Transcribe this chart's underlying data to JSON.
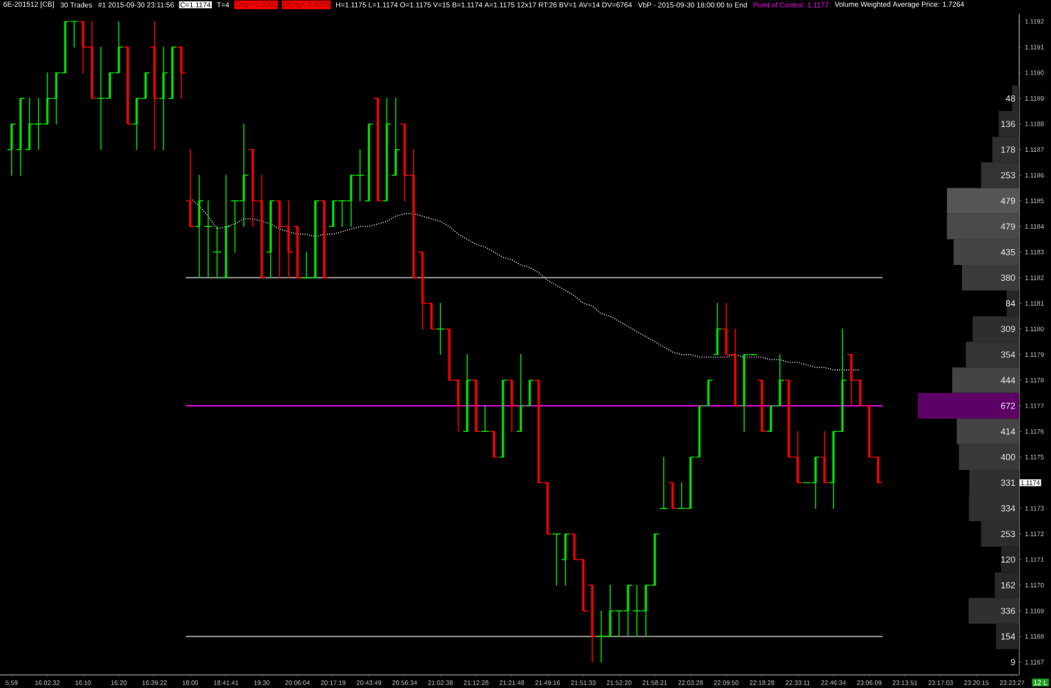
{
  "chart_data": [
    {
      "type": "candlestick",
      "title": "6E-201512 [CB]",
      "annotations": [
        "30 Trades",
        "#1 2015-09-30 23:11:56",
        "C=1.1174",
        "T=4",
        "Chg=-0.0001",
        "DChg=-0.0005",
        "H=1.1175 L=1.1174 O=1.1175 V=15 B=1.1174 A=1.1175 12x17 RT:26 BV=1 AV=14 DV=6764",
        "VbP - 2015-09-30 18:00:00 to End",
        "Point of Control: 1.1177",
        "Volume Weighted Average Price: 1.7264",
        "1.1174",
        "12 L"
      ],
      "categories": [
        "5:59",
        null,
        null,
        null,
        "16:02:32",
        null,
        null,
        null,
        "16:10",
        null,
        null,
        null,
        "16:20",
        null,
        null,
        null,
        "16:39:22",
        null,
        null,
        null,
        "18:00",
        null,
        null,
        null,
        "18:41:41",
        null,
        null,
        null,
        "19:30",
        null,
        null,
        null,
        "20:06:04",
        null,
        null,
        null,
        "20:17:19",
        null,
        null,
        null,
        "20:43:49",
        null,
        null,
        null,
        "20:56:34",
        null,
        null,
        null,
        "21:02:38",
        null,
        null,
        null,
        "21:12:28",
        null,
        null,
        null,
        "21:21:48",
        null,
        null,
        null,
        "21:49:16",
        null,
        null,
        null,
        "21:51:33",
        null,
        null,
        null,
        "21:52:20",
        null,
        null,
        null,
        "21:58:21",
        null,
        null,
        null,
        "22:03:28",
        null,
        null,
        null,
        "22:09:50",
        null,
        null,
        null,
        "22:18:28",
        null,
        null,
        null,
        "22:33:11",
        null,
        null,
        null,
        "22:46:34",
        null,
        null,
        null,
        "23:06:09",
        null,
        null,
        null,
        "23:13:51",
        null,
        null,
        null,
        "23:17:03",
        null,
        null,
        null,
        "23:20:15",
        null,
        null,
        null,
        "23:23:27"
      ],
      "ohlc": [
        [
          1.1187,
          1.1188,
          1.1186,
          1.1188
        ],
        [
          1.1187,
          1.1189,
          1.1186,
          1.1189
        ],
        [
          1.1187,
          1.1189,
          1.1187,
          1.1188
        ],
        [
          1.1188,
          1.1189,
          1.1187,
          1.1188
        ],
        [
          1.1188,
          1.119,
          1.1188,
          1.1189
        ],
        [
          1.1189,
          1.119,
          1.1188,
          1.119
        ],
        [
          1.119,
          1.1192,
          1.119,
          1.1192
        ],
        [
          1.1192,
          1.1192,
          1.1191,
          1.1192
        ],
        [
          1.1192,
          1.1192,
          1.119,
          1.1191
        ],
        [
          1.1191,
          1.1192,
          1.1189,
          1.1189
        ],
        [
          1.1189,
          1.1191,
          1.1187,
          1.1189
        ],
        [
          1.1189,
          1.119,
          1.1189,
          1.119
        ],
        [
          1.119,
          1.1192,
          1.119,
          1.1191
        ],
        [
          1.1191,
          1.1191,
          1.1188,
          1.1188
        ],
        [
          1.1188,
          1.1189,
          1.1187,
          1.1189
        ],
        [
          1.1189,
          1.119,
          1.1189,
          1.119
        ],
        [
          1.1191,
          1.1192,
          1.1187,
          1.1189
        ],
        [
          1.1189,
          1.1191,
          1.1187,
          1.119
        ],
        [
          1.1189,
          1.1191,
          1.1189,
          1.1191
        ],
        [
          1.1191,
          1.1191,
          1.1189,
          1.119
        ],
        [
          1.1185,
          1.1187,
          1.1184,
          1.1184
        ],
        [
          1.1184,
          1.1186,
          1.1182,
          1.1185
        ],
        [
          1.1184,
          1.1185,
          1.1182,
          1.1184
        ],
        [
          1.1183,
          1.1184,
          1.1182,
          1.1183
        ],
        [
          1.1182,
          1.1186,
          1.1182,
          1.1184
        ],
        [
          1.1185,
          1.1185,
          1.1183,
          1.1185
        ],
        [
          1.1185,
          1.1188,
          1.1184,
          1.1186
        ],
        [
          1.1187,
          1.1187,
          1.1184,
          1.1185
        ],
        [
          1.1185,
          1.1186,
          1.1182,
          1.1182
        ],
        [
          1.1183,
          1.1185,
          1.1182,
          1.1185
        ],
        [
          1.1185,
          1.1185,
          1.1182,
          1.1184
        ],
        [
          1.1184,
          1.1185,
          1.1182,
          1.1183
        ],
        [
          1.1184,
          1.1184,
          1.1182,
          1.1182
        ],
        [
          1.1182,
          1.1183,
          1.1182,
          1.1182
        ],
        [
          1.1182,
          1.1185,
          1.1182,
          1.1185
        ],
        [
          1.1185,
          1.1185,
          1.1182,
          1.1182
        ],
        [
          1.1184,
          1.1185,
          1.1184,
          1.1185
        ],
        [
          1.1185,
          1.1185,
          1.1184,
          1.1185
        ],
        [
          1.1185,
          1.1186,
          1.1184,
          1.1186
        ],
        [
          1.1186,
          1.1187,
          1.1185,
          1.1186
        ],
        [
          1.1185,
          1.1188,
          1.1185,
          1.1188
        ],
        [
          1.1189,
          1.1189,
          1.1185,
          1.1185
        ],
        [
          1.1185,
          1.1189,
          1.1185,
          1.1188
        ],
        [
          1.1186,
          1.1189,
          1.1186,
          1.1187
        ],
        [
          1.1188,
          1.1188,
          1.1185,
          1.1186
        ],
        [
          1.1186,
          1.1187,
          1.1182,
          1.1182
        ],
        [
          1.1183,
          1.1183,
          1.118,
          1.1181
        ],
        [
          1.1181,
          1.1181,
          1.118,
          1.118
        ],
        [
          1.118,
          1.1181,
          1.1179,
          1.118
        ],
        [
          1.118,
          1.118,
          1.1178,
          1.1178
        ],
        [
          1.1178,
          1.1178,
          1.1176,
          1.1177
        ],
        [
          1.1176,
          1.1179,
          1.1176,
          1.1178
        ],
        [
          1.1178,
          1.1178,
          1.1176,
          1.1176
        ],
        [
          1.1176,
          1.1177,
          1.1176,
          1.1176
        ],
        [
          1.1176,
          1.1176,
          1.1175,
          1.1175
        ],
        [
          1.1175,
          1.1178,
          1.1175,
          1.1178
        ],
        [
          1.1178,
          1.1178,
          1.1176,
          1.1177
        ],
        [
          1.1176,
          1.1179,
          1.1176,
          1.1177
        ],
        [
          1.1177,
          1.1178,
          1.1177,
          1.1178
        ],
        [
          1.1178,
          1.1178,
          1.1174,
          1.1174
        ],
        [
          1.1174,
          1.1174,
          1.1172,
          1.1172
        ],
        [
          1.1172,
          1.1172,
          1.117,
          1.1172
        ],
        [
          1.1171,
          1.1172,
          1.117,
          1.1172
        ],
        [
          1.1172,
          1.1172,
          1.1171,
          1.1171
        ],
        [
          1.1171,
          1.1171,
          1.1169,
          1.1169
        ],
        [
          1.117,
          1.117,
          1.1167,
          1.1168
        ],
        [
          1.1168,
          1.1169,
          1.1167,
          1.1168
        ],
        [
          1.1168,
          1.117,
          1.1168,
          1.1169
        ],
        [
          1.1169,
          1.1169,
          1.1168,
          1.1169
        ],
        [
          1.1169,
          1.117,
          1.1168,
          1.117
        ],
        [
          1.1169,
          1.117,
          1.1168,
          1.1169
        ],
        [
          1.1169,
          1.117,
          1.1168,
          1.117
        ],
        [
          1.117,
          1.1172,
          1.117,
          1.1172
        ],
        [
          1.1173,
          1.1175,
          1.1173,
          1.1173
        ],
        [
          1.1174,
          1.1174,
          1.1173,
          1.1173
        ],
        [
          1.1173,
          1.1174,
          1.1173,
          1.1173
        ],
        [
          1.1173,
          1.1175,
          1.1173,
          1.1175
        ],
        [
          1.1175,
          1.1177,
          1.1175,
          1.1177
        ],
        [
          1.1177,
          1.1178,
          1.1177,
          1.1178
        ],
        [
          1.1179,
          1.1181,
          1.1179,
          1.118
        ],
        [
          1.118,
          1.1181,
          1.1179,
          1.1179
        ],
        [
          1.1179,
          1.118,
          1.1177,
          1.1177
        ],
        [
          1.1177,
          1.1179,
          1.1176,
          1.1179
        ],
        [
          1.1179,
          1.1179,
          1.1179,
          1.1179
        ],
        [
          1.1178,
          1.1178,
          1.1176,
          1.1176
        ],
        [
          1.1176,
          1.1177,
          1.1176,
          1.1177
        ],
        [
          1.1177,
          1.1179,
          1.1177,
          1.1178
        ],
        [
          1.1178,
          1.1178,
          1.1175,
          1.1175
        ],
        [
          1.1175,
          1.1176,
          1.1174,
          1.1174
        ],
        [
          1.1174,
          1.1174,
          1.1174,
          1.1174
        ],
        [
          1.1174,
          1.1175,
          1.1173,
          1.1175
        ],
        [
          1.1175,
          1.1176,
          1.1174,
          1.1174
        ],
        [
          1.1174,
          1.1176,
          1.1173,
          1.1176
        ],
        [
          1.1176,
          1.118,
          1.1176,
          1.1178
        ],
        [
          1.1179,
          1.1179,
          1.1177,
          1.1178
        ],
        [
          1.1178,
          1.1178,
          1.1177,
          1.1177
        ],
        [
          1.1177,
          1.1177,
          1.1175,
          1.1175
        ],
        [
          1.1175,
          1.1175,
          1.1174,
          1.1174
        ],
        null,
        null,
        null,
        null,
        null,
        null,
        null,
        null,
        null,
        null,
        null,
        null,
        null,
        null,
        null
      ],
      "colors": [
        "#00e000",
        "#00e000",
        "#00e000",
        "#00e000",
        "#00e000",
        "#00e000",
        "#00e000",
        "#00e000",
        "#ff0000",
        "#ff0000",
        "#00e000",
        "#00e000",
        "#00e000",
        "#ff0000",
        "#00e000",
        "#00e000",
        "#ff0000",
        "#00e000",
        "#00e000",
        "#ff0000",
        "#ff0000",
        "#00e000",
        "#00e000",
        "#00e000",
        "#00e000",
        "#00e000",
        "#00e000",
        "#ff0000",
        "#ff0000",
        "#00e000",
        "#ff0000",
        "#ff0000",
        "#ff0000",
        "#00e000",
        "#00e000",
        "#ff0000",
        "#00e000",
        "#00e000",
        "#00e000",
        "#00e000",
        "#00e000",
        "#ff0000",
        "#00e000",
        "#00e000",
        "#ff0000",
        "#ff0000",
        "#ff0000",
        "#ff0000",
        "#00e000",
        "#ff0000",
        "#ff0000",
        "#00e000",
        "#ff0000",
        "#00e000",
        "#ff0000",
        "#00e000",
        "#ff0000",
        "#00e000",
        "#00e000",
        "#ff0000",
        "#ff0000",
        "#00e000",
        "#00e000",
        "#ff0000",
        "#ff0000",
        "#ff0000",
        "#00e000",
        "#00e000",
        "#00e000",
        "#00e000",
        "#00e000",
        "#00e000",
        "#00e000",
        "#00e000",
        "#ff0000",
        "#00e000",
        "#00e000",
        "#00e000",
        "#00e000",
        "#00e000",
        "#ff0000",
        "#ff0000",
        "#00e000",
        "#00e000",
        "#ff0000",
        "#00e000",
        "#00e000",
        "#ff0000",
        "#ff0000",
        "#00e000",
        "#00e000",
        "#ff0000",
        "#00e000",
        "#00e000",
        "#ff0000",
        "#ff0000",
        "#ff0000",
        "#ff0000",
        null,
        null,
        null,
        null,
        null,
        null,
        null,
        null,
        null,
        null,
        null,
        null,
        null,
        null,
        null
      ],
      "series": [
        {
          "type": "line",
          "color": "#e6e6e6",
          "line_style": "dotted",
          "values": [
            null,
            null,
            null,
            null,
            null,
            null,
            null,
            null,
            null,
            null,
            null,
            null,
            null,
            null,
            null,
            null,
            null,
            null,
            null,
            null,
            1.11851,
            1.11848,
            1.11844,
            1.11839,
            1.1184,
            1.11841,
            1.11843,
            1.11843,
            1.11842,
            1.11841,
            1.11839,
            1.11838,
            1.11837,
            1.11837,
            1.11836,
            1.11837,
            1.11837,
            1.11838,
            1.11839,
            1.1184,
            1.1184,
            1.11841,
            1.11842,
            1.11844,
            1.11845,
            1.11845,
            1.11844,
            1.11843,
            1.11842,
            1.1184,
            1.11837,
            1.11835,
            1.11833,
            1.11832,
            1.1183,
            1.11828,
            1.11827,
            1.11825,
            1.11824,
            1.11822,
            1.11819,
            1.11817,
            1.11815,
            1.11813,
            1.1181,
            1.11809,
            1.11806,
            1.11805,
            1.11803,
            1.11801,
            1.11799,
            1.11797,
            1.11795,
            1.11793,
            1.11791,
            1.1179,
            1.1179,
            1.11789,
            1.11789,
            1.11789,
            1.11789,
            1.1179,
            1.11789,
            1.11789,
            1.11789,
            1.11788,
            1.11788,
            1.11787,
            1.11787,
            1.11786,
            1.11785,
            1.11785,
            1.11784,
            1.11784,
            1.11784,
            1.11784,
            null,
            null,
            null,
            null,
            null,
            null,
            null,
            null,
            null,
            null,
            null,
            null,
            null,
            null,
            null,
            null,
            null
          ]
        }
      ],
      "ref_lines": [
        {
          "axis": "y",
          "value": 1.1182,
          "color": "#a8a8a8"
        },
        {
          "axis": "y",
          "value": 1.1177,
          "color": "#ff00ff"
        },
        {
          "axis": "y",
          "value": 1.1168,
          "color": "#a8a8a8"
        }
      ],
      "ylim": [
        1.11665,
        1.11923
      ],
      "yticks": [
        1.1192,
        1.1191,
        {
          "value": 1.119,
          "label": "1.1190"
        },
        {
          "value": 1.1189,
          "label": null
        },
        {
          "value": 1.1188,
          "label": null
        },
        {
          "value": 1.1187,
          "label": null
        },
        {
          "value": 1.1186,
          "label": null
        },
        {
          "value": 1.1185,
          "label": null
        },
        {
          "value": 1.1184,
          "label": null
        },
        {
          "value": 1.1183,
          "label": null
        },
        {
          "value": 1.1182,
          "label": null
        },
        {
          "value": 1.1181,
          "label": null
        },
        {
          "value": 1.118,
          "label": null
        },
        {
          "value": 1.1179,
          "label": null
        },
        {
          "value": 1.1178,
          "label": null
        },
        {
          "value": 1.1177,
          "label": null
        },
        {
          "value": 1.1176,
          "label": null
        },
        {
          "value": 1.1175,
          "label": null
        },
        {
          "value": 1.1174,
          "label": null
        },
        {
          "value": 1.1173,
          "label": null
        },
        {
          "value": 1.1172,
          "label": null
        },
        {
          "value": 1.1171,
          "label": null
        },
        {
          "value": 1.117,
          "label": null
        },
        {
          "value": 1.1169,
          "label": null
        },
        {
          "value": 1.1168,
          "label": null
        },
        {
          "value": 1.1167,
          "label": null
        }
      ]
    },
    {
      "type": "bar",
      "orientation": "horizontal",
      "tick_labels": "y",
      "data_labels": true,
      "categories": [
        "1.1189",
        "1.1188",
        "1.1187",
        "1.1186",
        "1.1185",
        "1.1184",
        "1.1183",
        "1.1182",
        "1.1181",
        "1.1180",
        "1.1179",
        "1.1178",
        "1.1177",
        "1.1176",
        "1.1175",
        null,
        "1.1173",
        "1.1172",
        "1.1171",
        "1.1170",
        "1.1169",
        "1.1168",
        "1.1167"
      ],
      "values": [
        48,
        136,
        178,
        253,
        479,
        479,
        435,
        380,
        84,
        309,
        354,
        444,
        672,
        414,
        400,
        331,
        334,
        253,
        120,
        162,
        336,
        154,
        9
      ],
      "colors": [
        "#262626",
        "#2a2a2a",
        "#2e2e2e",
        "#333333",
        "#555555",
        "#4a4a4a",
        "#444444",
        "#3a3a3a",
        "#262626",
        "#2e2e2e",
        "#333333",
        "#444444",
        "#5c0066",
        "#444444",
        "#383838",
        "#303030",
        "#303030",
        "#2c2c2c",
        "#242424",
        "#282828",
        "#303030",
        "#262626",
        "#1c1c1c"
      ]
    }
  ]
}
